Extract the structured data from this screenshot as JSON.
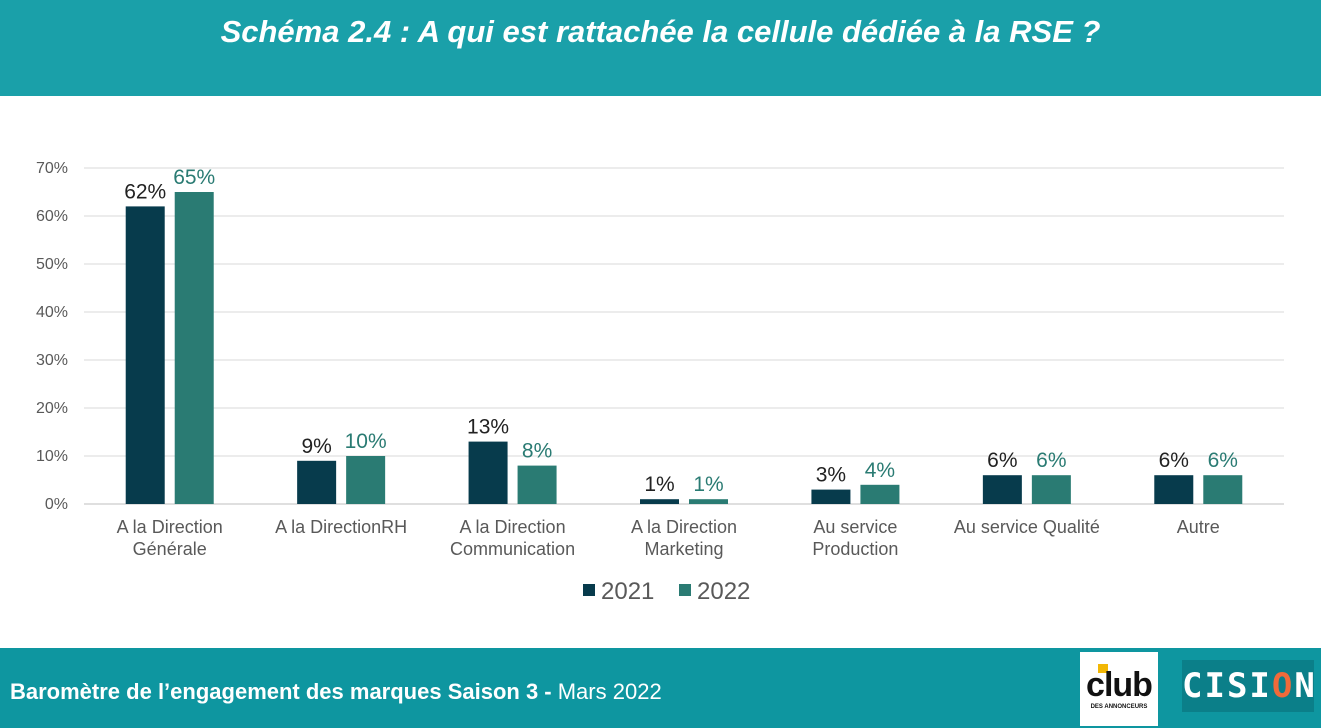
{
  "header": {
    "title": "Schéma 2.4 : A qui est rattachée la cellule dédiée à la RSE ?"
  },
  "chart_data": {
    "type": "bar",
    "title": "",
    "xlabel": "",
    "ylabel": "",
    "ylim": [
      0,
      70
    ],
    "yticks": [
      0,
      10,
      20,
      30,
      40,
      50,
      60,
      70
    ],
    "ytick_labels": [
      "0%",
      "10%",
      "20%",
      "30%",
      "40%",
      "50%",
      "60%",
      "70%"
    ],
    "grid": true,
    "legend_position": "bottom-center",
    "categories": [
      [
        "A la Direction",
        "Générale"
      ],
      [
        "A la DirectionRH"
      ],
      [
        "A la Direction",
        "Communication"
      ],
      [
        "A la Direction",
        "Marketing"
      ],
      [
        "Au service",
        "Production"
      ],
      [
        "Au service Qualité"
      ],
      [
        "Autre"
      ]
    ],
    "series": [
      {
        "name": "2021",
        "color": "#073b4c",
        "label_color": "#222222",
        "values": [
          62,
          9,
          13,
          1,
          3,
          6,
          6
        ],
        "labels": [
          "62%",
          "9%",
          "13%",
          "1%",
          "3%",
          "6%",
          "6%"
        ]
      },
      {
        "name": "2022",
        "color": "#2a7b73",
        "label_color": "#2a7b73",
        "values": [
          65,
          10,
          8,
          1,
          4,
          6,
          6
        ],
        "labels": [
          "65%",
          "10%",
          "8%",
          "1%",
          "4%",
          "6%",
          "6%"
        ]
      }
    ]
  },
  "footer": {
    "text_bold": "Baromètre de l’engagement des marques Saison 3 - ",
    "text_regular": "Mars 2022"
  },
  "logos": {
    "club": {
      "word": "club",
      "subtitle": "DES ANNONCEURS"
    },
    "cision": {
      "part1": "CISI",
      "accent": "O",
      "part2": "N"
    }
  }
}
